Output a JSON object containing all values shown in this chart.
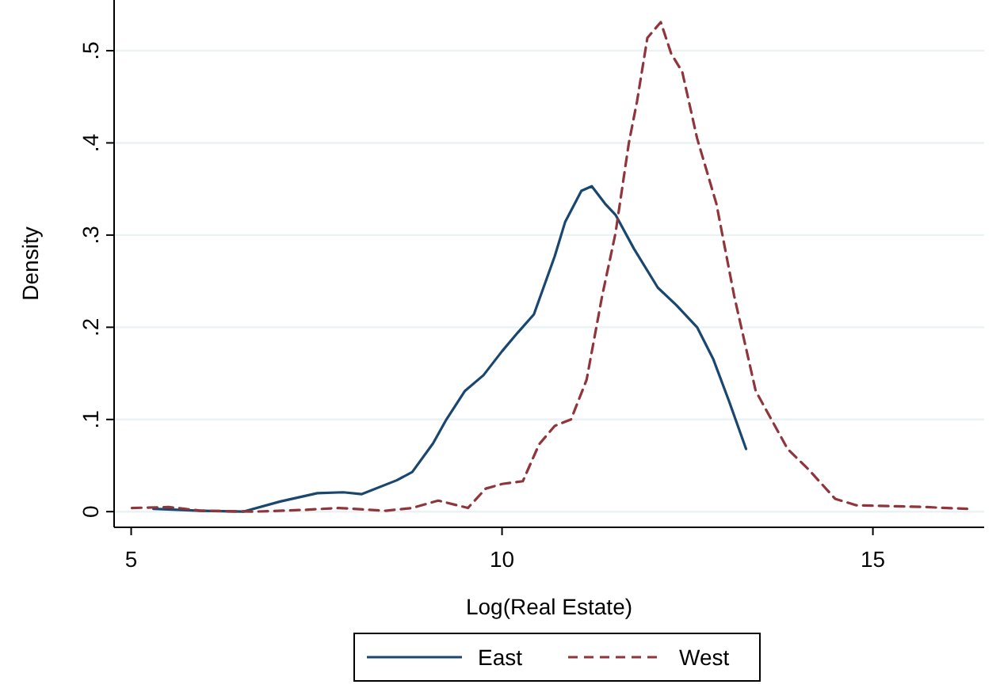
{
  "chart_data": {
    "type": "line",
    "xlabel": "Log(Real Estate)",
    "ylabel": "Density",
    "xlim": [
      4.77,
      16.5
    ],
    "ylim": [
      -0.017,
      0.555
    ],
    "xticks": [
      5,
      10,
      15
    ],
    "yticks": [
      0,
      {
        "value": 0.1,
        "label": ".1"
      },
      {
        "value": 0.2,
        "label": ".2"
      },
      {
        "value": 0.3,
        "label": ".3"
      },
      {
        "value": 0.4,
        "label": ".4"
      },
      {
        "value": 0.5,
        "label": ".5"
      }
    ],
    "grid": "y",
    "legend": "bottom",
    "series": [
      {
        "name": "East",
        "color": "#1a476f",
        "line_style": "solid",
        "x": [
          5.3,
          5.94,
          6.51,
          7.01,
          7.51,
          7.86,
          8.11,
          8.58,
          8.79,
          9.07,
          9.25,
          9.5,
          9.75,
          10.0,
          10.21,
          10.43,
          10.71,
          10.85,
          11.07,
          11.21,
          11.39,
          11.53,
          11.78,
          12.1,
          12.35,
          12.63,
          12.85,
          13.06,
          13.29
        ],
        "values": [
          0.003,
          0.001,
          0,
          0.011,
          0.02,
          0.021,
          0.019,
          0.034,
          0.043,
          0.074,
          0.1,
          0.131,
          0.148,
          0.174,
          0.194,
          0.214,
          0.277,
          0.314,
          0.348,
          0.353,
          0.334,
          0.322,
          0.285,
          0.243,
          0.224,
          0.2,
          0.165,
          0.12,
          0.068
        ]
      },
      {
        "name": "West",
        "color": "#90353b",
        "line_style": "dashed",
        "x": [
          5.01,
          5.51,
          5.94,
          6.65,
          7.36,
          7.79,
          8.43,
          8.79,
          9.14,
          9.54,
          9.78,
          10.0,
          10.28,
          10.5,
          10.71,
          10.93,
          11.14,
          11.35,
          11.53,
          11.71,
          11.82,
          11.96,
          12.14,
          12.28,
          12.43,
          12.63,
          12.89,
          13.13,
          13.42,
          13.85,
          14.13,
          14.49,
          14.77,
          15.7,
          16.27
        ],
        "values": [
          0.004,
          0.005,
          0.001,
          0,
          0.002,
          0.004,
          0.001,
          0.004,
          0.012,
          0.004,
          0.025,
          0.03,
          0.033,
          0.073,
          0.093,
          0.1,
          0.143,
          0.234,
          0.302,
          0.4,
          0.445,
          0.514,
          0.531,
          0.497,
          0.477,
          0.405,
          0.334,
          0.234,
          0.131,
          0.068,
          0.046,
          0.014,
          0.007,
          0.005,
          0.003
        ]
      }
    ]
  }
}
